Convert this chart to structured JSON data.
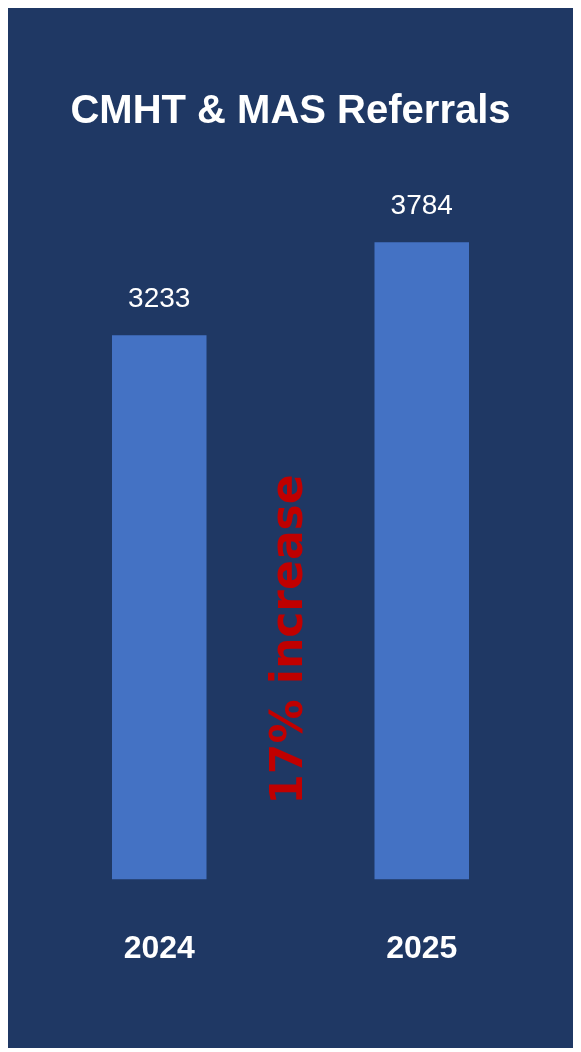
{
  "chart_data": {
    "type": "bar",
    "title": "CMHT & MAS Referrals",
    "categories": [
      "2024",
      "2025"
    ],
    "values": [
      3233,
      3784
    ],
    "color": "#4472c4",
    "data_labels": true,
    "grid": false,
    "legend": false,
    "annotations": [
      "17% increase"
    ]
  }
}
